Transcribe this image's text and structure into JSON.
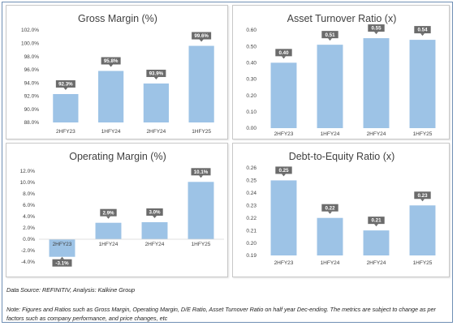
{
  "chart_data": [
    {
      "type": "bar",
      "title": "Gross Margin (%)",
      "categories": [
        "2HFY23",
        "1HFY24",
        "2HFY24",
        "1HFY25"
      ],
      "values": [
        92.3,
        95.8,
        93.9,
        99.6
      ],
      "value_labels": [
        "92.3%",
        "95.8%",
        "93.9%",
        "99.6%"
      ],
      "ylim": [
        88,
        102
      ],
      "yticks": [
        88,
        90,
        92,
        94,
        96,
        98,
        100,
        102
      ],
      "ytick_labels": [
        "88.0%",
        "90.0%",
        "92.0%",
        "94.0%",
        "96.0%",
        "98.0%",
        "100.0%",
        "102.0%"
      ],
      "bar_color": "#9dc3e6"
    },
    {
      "type": "bar",
      "title": "Asset Turnover Ratio (x)",
      "categories": [
        "2HFY23",
        "1HFY24",
        "2HFY24",
        "1HFY25"
      ],
      "values": [
        0.4,
        0.51,
        0.55,
        0.54
      ],
      "value_labels": [
        "0.40",
        "0.51",
        "0.55",
        "0.54"
      ],
      "ylim": [
        0,
        0.6
      ],
      "yticks": [
        0,
        0.1,
        0.2,
        0.3,
        0.4,
        0.5,
        0.6
      ],
      "ytick_labels": [
        "0.00",
        "0.10",
        "0.20",
        "0.30",
        "0.40",
        "0.50",
        "0.60"
      ],
      "bar_color": "#9dc3e6"
    },
    {
      "type": "bar",
      "title": "Operating Margin (%)",
      "categories": [
        "2HFY23",
        "1HFY24",
        "2HFY24",
        "1HFY25"
      ],
      "values": [
        -3.1,
        2.9,
        3.0,
        10.1
      ],
      "value_labels": [
        "-3.1%",
        "2.9%",
        "3.0%",
        "10.1%"
      ],
      "ylim": [
        -6,
        12
      ],
      "yticks": [
        -6,
        -4,
        -2,
        0,
        2,
        4,
        6,
        8,
        10,
        12
      ],
      "ytick_labels": [
        "",
        "-4.0%",
        "-2.0%",
        "0.0%",
        "2.0%",
        "4.0%",
        "6.0%",
        "8.0%",
        "10.0%",
        "12.0%"
      ],
      "bar_color": "#9dc3e6"
    },
    {
      "type": "bar",
      "title": "Debt-to-Equity Ratio (x)",
      "categories": [
        "2HFY23",
        "1HFY24",
        "2HFY24",
        "1HFY25"
      ],
      "values": [
        0.25,
        0.22,
        0.21,
        0.23
      ],
      "value_labels": [
        "0.25",
        "0.22",
        "0.21",
        "0.23"
      ],
      "ylim": [
        0.19,
        0.26
      ],
      "yticks": [
        0.19,
        0.2,
        0.21,
        0.22,
        0.23,
        0.24,
        0.25,
        0.26
      ],
      "ytick_labels": [
        "0.19",
        "0.20",
        "0.21",
        "0.22",
        "0.23",
        "0.24",
        "0.25",
        "0.26"
      ],
      "bar_color": "#9dc3e6"
    }
  ],
  "footer": {
    "source": "Data Source: REFINITIV, Analysis: Kalkine Group",
    "note_line1": "Note: Figures and Ratios such as Gross Margin, Operating Margin, D/E Ratio, Asset Turnover Ratio on half year Dec-ending. The metrics are subject to change as per",
    "note_line2": "factors such as company performance, and price changes, etc"
  },
  "colors": {
    "bar": "#9dc3e6",
    "label_box": "#6b6b6b",
    "axis_text": "#404040",
    "frame": "#6f8fb4"
  }
}
